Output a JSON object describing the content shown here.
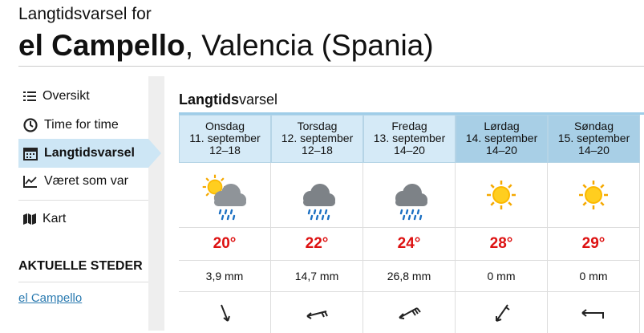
{
  "header": {
    "subtitle": "Langtidsvarsel for",
    "place_bold": "el Campello",
    "place_rest": ", Valencia (Spania)"
  },
  "nav": {
    "items": [
      "Oversikt",
      "Time for time",
      "Langtidsvarsel",
      "Været som var",
      "Kart"
    ],
    "section_title": "AKTUELLE STEDER",
    "places": [
      "el Campello"
    ]
  },
  "forecast": {
    "title_bold": "Langtids",
    "title_rest": "varsel",
    "days": [
      {
        "day": "Onsdag",
        "date": "11. september",
        "hours": "12–18",
        "temperature": "20°",
        "precipitation": "3,9 mm"
      },
      {
        "day": "Torsdag",
        "date": "12. september",
        "hours": "12–18",
        "temperature": "22°",
        "precipitation": "14,7 mm"
      },
      {
        "day": "Fredag",
        "date": "13. september",
        "hours": "14–20",
        "temperature": "24°",
        "precipitation": "26,8 mm"
      },
      {
        "day": "Lørdag",
        "date": "14. september",
        "hours": "14–20",
        "temperature": "28°",
        "precipitation": "0 mm"
      },
      {
        "day": "Søndag",
        "date": "15. september",
        "hours": "14–20",
        "temperature": "29°",
        "precipitation": "0 mm"
      }
    ]
  }
}
